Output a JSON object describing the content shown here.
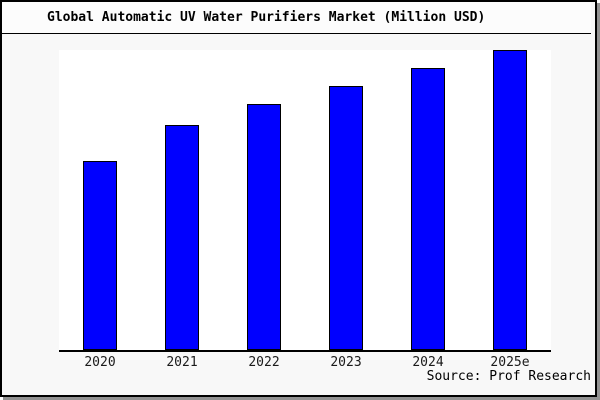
{
  "title": "Global Automatic UV Water Purifiers Market (Million USD)",
  "source_note": "Source: Prof Research",
  "colors": {
    "bar_fill": "#0000ff",
    "bar_border": "#000000",
    "figure_background": "#f8f8f8",
    "plot_background": "#ffffff",
    "axis_line": "#000000",
    "shadow": "#929292",
    "text": "#000000"
  },
  "chart_data": {
    "type": "bar",
    "title": "Global Automatic UV Water Purifiers Market (Million USD)",
    "categories": [
      "2020",
      "2021",
      "2022",
      "2023",
      "2024",
      "2025e"
    ],
    "values": [
      63,
      75,
      82,
      88,
      94,
      100
    ],
    "values_note": "No y-axis or data labels are shown in the chart; values are relative bar heights expressed as percent of the tallest bar (2025e = 100).",
    "xlabel": "",
    "ylabel": "",
    "ylim": [
      0,
      100
    ],
    "grid": false,
    "legend": "none",
    "bar_color": "#0000ff",
    "source": "Source: Prof Research"
  }
}
